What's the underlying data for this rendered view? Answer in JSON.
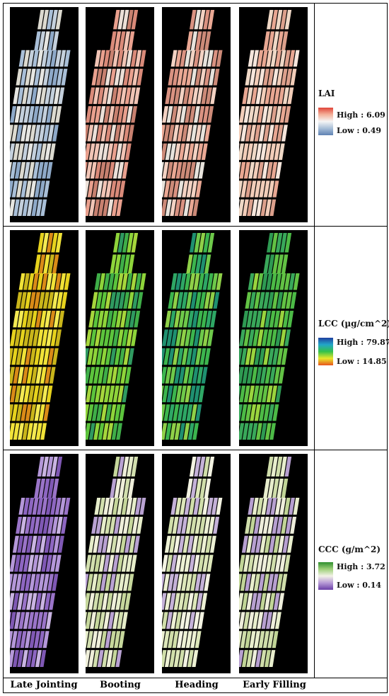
{
  "rows": [
    {
      "id": "lai",
      "title": "LAI",
      "high_label": "High : 6.09",
      "low_label": "Low : 0.49",
      "colorbar": [
        "#e0463a",
        "#f4b19a",
        "#f5f5f5",
        "#a8bfd8",
        "#5f82b3"
      ],
      "stage_palettes": [
        [
          "#a9bfd7",
          "#c4d0dc",
          "#e6e6e2",
          "#8ea9c8",
          "#dcdad0"
        ],
        [
          "#e9a08e",
          "#f1c4b5",
          "#d98a79",
          "#ece0d8",
          "#c7806f"
        ],
        [
          "#eaa894",
          "#f3d2c3",
          "#d99281",
          "#e7e3dc",
          "#cc8a78"
        ],
        [
          "#f2cdb9",
          "#f6e6dc",
          "#e8a792",
          "#efd8c6",
          "#dca08c"
        ]
      ]
    },
    {
      "id": "lcc",
      "title": "LCC (µg/cm^2)",
      "high_label": "High : 79.87",
      "low_label": "Low : 14.85",
      "colorbar": [
        "#1f3fa0",
        "#22a6c8",
        "#34c24a",
        "#e9e82a",
        "#e8541e"
      ],
      "stage_palettes": [
        [
          "#e6d21d",
          "#f0e238",
          "#c9b51a",
          "#d98b17",
          "#f4ea53"
        ],
        [
          "#5cc43c",
          "#3fae48",
          "#8ed43a",
          "#2f9a60",
          "#a6d63c"
        ],
        [
          "#3cb54e",
          "#2ea765",
          "#6ec94a",
          "#1f9070",
          "#8fd048"
        ],
        [
          "#4cba46",
          "#62c244",
          "#39a85a",
          "#9ad43e",
          "#2e9a52"
        ]
      ]
    },
    {
      "id": "ccc",
      "title": "CCC (g/m^2)",
      "high_label": "High : 3.72",
      "low_label": "Low : 0.14",
      "colorbar": [
        "#2f8f2f",
        "#9ed07a",
        "#f2f2e6",
        "#b79ad6",
        "#6a3fa8"
      ],
      "stage_palettes": [
        [
          "#9a74c8",
          "#b497d9",
          "#7f58b4",
          "#c9b4e2",
          "#8d66c1"
        ],
        [
          "#d2dfae",
          "#e6edca",
          "#b9a2d2",
          "#c6d79c",
          "#efefda"
        ],
        [
          "#dde7ba",
          "#edf1d4",
          "#c5b2d8",
          "#d0deaa",
          "#f3f3e2"
        ],
        [
          "#d0deab",
          "#e8eecd",
          "#b7a0d0",
          "#c1d597",
          "#eeeedb"
        ]
      ]
    }
  ],
  "columns": [
    "Late Jointing",
    "Booting",
    "Heading",
    "Early Filling"
  ]
}
